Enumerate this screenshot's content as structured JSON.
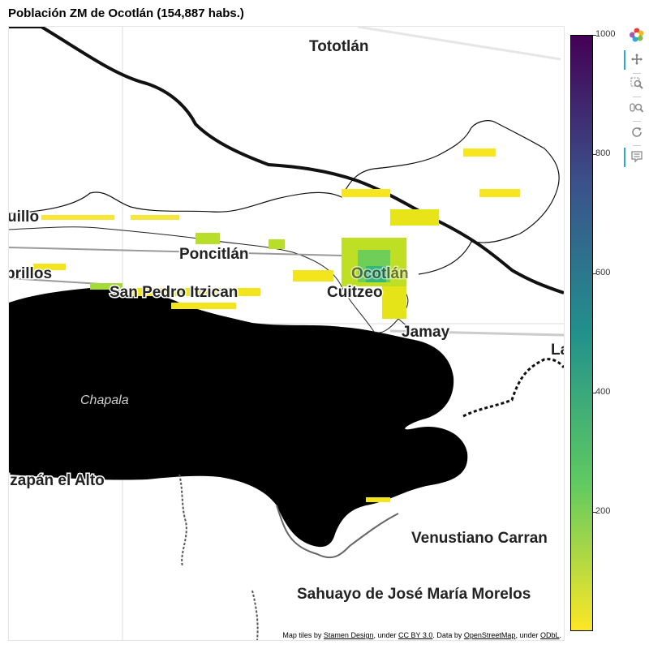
{
  "title": "Población ZM de Ocotlán (154,887 habs.)",
  "map": {
    "place_labels": [
      {
        "text": "Tototlán",
        "style": "bold"
      },
      {
        "text": "uillo",
        "style": "bold"
      },
      {
        "text": "Poncitlán",
        "style": "bold"
      },
      {
        "text": "brillos",
        "style": "bold"
      },
      {
        "text": "San Pedro Itzican",
        "style": "bold"
      },
      {
        "text": "Ocotlán",
        "style": "bold"
      },
      {
        "text": "Cuitzeo",
        "style": "bold"
      },
      {
        "text": "Jamay",
        "style": "bold"
      },
      {
        "text": "La",
        "style": "bold"
      },
      {
        "text": "Chapala",
        "style": "italic"
      },
      {
        "text": "izapán el Alto",
        "style": "bold"
      },
      {
        "text": "Venustiano Carran",
        "style": "bold"
      },
      {
        "text": "Sahuayo de José María Morelos",
        "style": "bold"
      }
    ],
    "attribution": {
      "prefix": "Map tiles by ",
      "link1": "Stamen Design",
      "mid1": ", under ",
      "link2": "CC BY 3.0",
      "mid2": ". Data by ",
      "link3": "OpenStreetMap",
      "mid3": ", under ",
      "link4": "ODbL",
      "suffix": "."
    }
  },
  "colorbar": {
    "palette": "Viridis (reversed)",
    "min": 0,
    "max": 1000,
    "tick_labels": [
      "1000",
      "800",
      "600",
      "400",
      "200"
    ],
    "tick_values": [
      1000,
      800,
      600,
      400,
      200
    ],
    "colors": [
      "#fde725",
      "#5ec962",
      "#21918c",
      "#3b528b",
      "#440154"
    ]
  },
  "toolbar": {
    "tools": [
      {
        "icon": "bokeh-logo-icon",
        "active": false
      },
      {
        "icon": "pan-icon",
        "active": true
      },
      {
        "icon": "box-zoom-icon",
        "active": false
      },
      {
        "icon": "wheel-zoom-icon",
        "active": false
      },
      {
        "icon": "reset-icon",
        "active": false
      },
      {
        "icon": "hover-icon",
        "active": true
      }
    ]
  }
}
